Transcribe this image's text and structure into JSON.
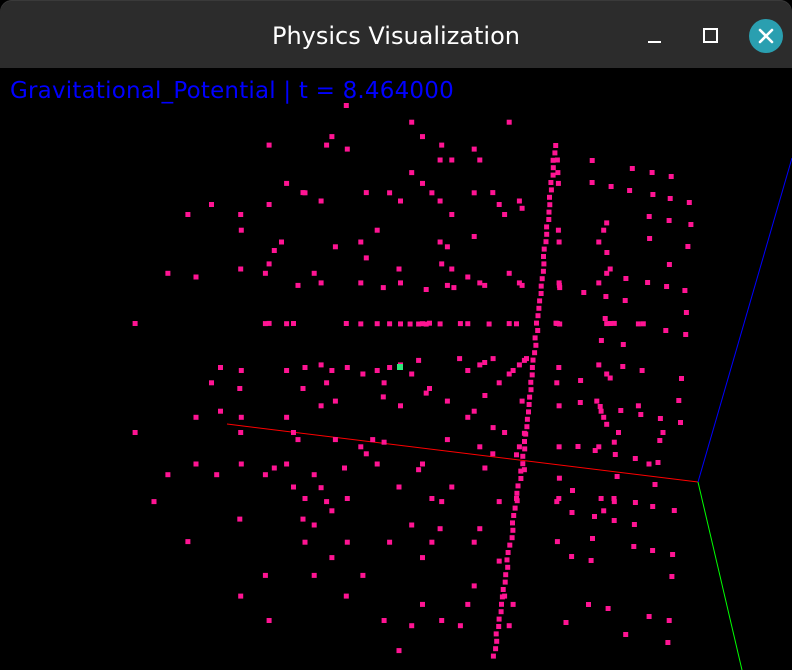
{
  "window": {
    "title": "Physics Visualization",
    "buttons": {
      "minimize": "minimize-icon",
      "maximize": "maximize-icon",
      "close": "close-icon"
    },
    "close_color": "#2a9fb0"
  },
  "viewport": {
    "overlay_text": "Gravitational_Potential | t = 8.464000",
    "overlay_color": "#0000ff",
    "particle_color": "#ff1493",
    "highlight_particle_color": "#2ee87a",
    "axes": {
      "x_color": "#ff0000",
      "y_color": "#00ff00",
      "z_color": "#0000ff"
    }
  }
}
